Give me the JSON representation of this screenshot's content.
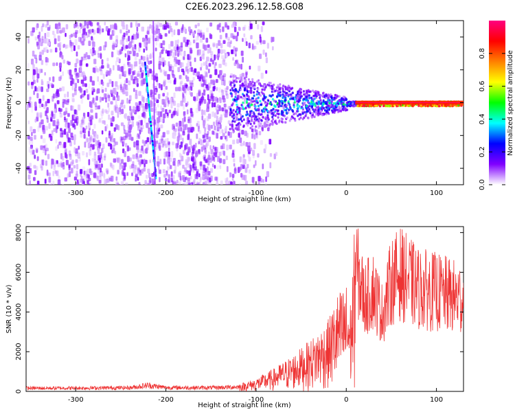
{
  "title": "C2E6.2023.296.12.58.G08",
  "chart_data": [
    {
      "type": "heatmap",
      "xlabel": "Height of straight line (km)",
      "ylabel": "Frequency (Hz)",
      "xlim": [
        -355,
        130
      ],
      "ylim": [
        -50,
        50
      ],
      "x_ticks": [
        -300,
        -200,
        -100,
        0,
        100
      ],
      "y_ticks": [
        -40,
        -20,
        0,
        20,
        40
      ],
      "colorbar": {
        "label": "Normalized spectral amplitude",
        "range": [
          0,
          1
        ],
        "ticks": [
          "0.0",
          "0.2",
          "0.4",
          "0.6",
          "0.8"
        ],
        "colors": [
          "#ffffff",
          "#8000ff",
          "#0000ff",
          "#00ffff",
          "#00ff00",
          "#ffff00",
          "#ff8000",
          "#ff0000",
          "#ff0080"
        ]
      },
      "features": [
        {
          "name": "noise",
          "x_range": [
            -355,
            -100
          ],
          "amplitude": 0.05
        },
        {
          "name": "streak",
          "x_start": -224,
          "y_start": 25,
          "x_end": -212,
          "y_end": -45,
          "amplitude": 0.35
        },
        {
          "name": "carrier",
          "x_range": [
            -130,
            130
          ],
          "center_freq": 0,
          "amplitude": 0.9
        }
      ]
    },
    {
      "type": "line",
      "xlabel": "Height of straight line (km)",
      "ylabel": "SNR (10 * v/v)",
      "xlim": [
        -355,
        130
      ],
      "ylim": [
        0,
        8300
      ],
      "x_ticks": [
        -300,
        -200,
        -100,
        0,
        100
      ],
      "y_ticks": [
        0,
        2000,
        4000,
        6000,
        8000
      ],
      "series_color": "#ee3333",
      "envelope": {
        "x": [
          -355,
          -300,
          -240,
          -220,
          -200,
          -150,
          -120,
          -100,
          -80,
          -60,
          -40,
          -20,
          -10,
          0,
          5,
          10,
          20,
          30,
          40,
          50,
          60,
          80,
          100,
          115,
          130
        ],
        "y": [
          200,
          210,
          230,
          380,
          240,
          230,
          280,
          500,
          900,
          1400,
          2000,
          2800,
          3800,
          4200,
          3500,
          7000,
          5000,
          5500,
          4200,
          6000,
          6400,
          5600,
          5400,
          5200,
          5000
        ]
      }
    }
  ]
}
